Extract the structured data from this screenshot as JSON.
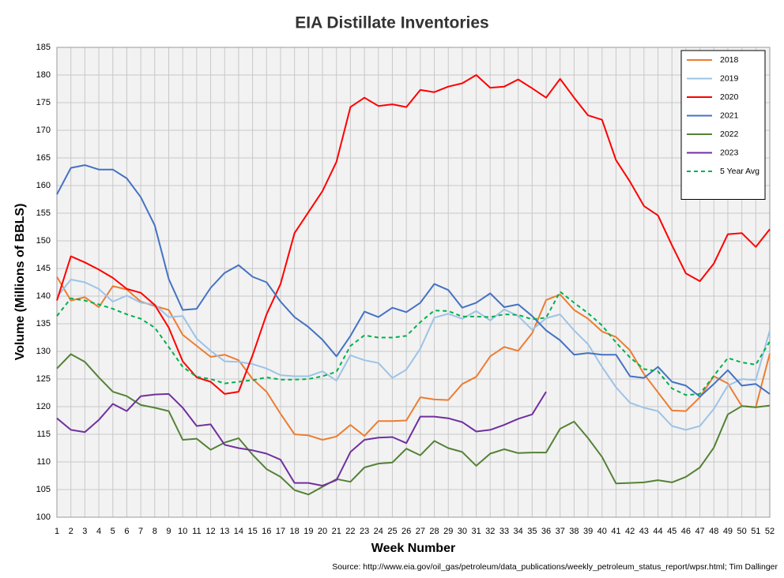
{
  "chart_data": {
    "type": "line",
    "title": "EIA Distillate Inventories",
    "xlabel": "Week Number",
    "ylabel": "Volume (Millions of BBLS)",
    "source": "Source: http://www.eia.gov/oil_gas/petroleum/data_publications/weekly_petroleum_status_report/wpsr.html; Tim Dallinger",
    "x": [
      1,
      2,
      3,
      4,
      5,
      6,
      7,
      8,
      9,
      10,
      11,
      12,
      13,
      14,
      15,
      16,
      17,
      18,
      19,
      20,
      21,
      22,
      23,
      24,
      25,
      26,
      27,
      28,
      29,
      30,
      31,
      32,
      33,
      34,
      35,
      36,
      37,
      38,
      39,
      40,
      41,
      42,
      43,
      44,
      45,
      46,
      47,
      48,
      49,
      50,
      51,
      52
    ],
    "xlim": [
      1,
      52
    ],
    "xticks": [
      1,
      2,
      3,
      4,
      5,
      6,
      7,
      8,
      9,
      10,
      11,
      12,
      13,
      14,
      15,
      16,
      17,
      18,
      19,
      20,
      21,
      22,
      23,
      24,
      25,
      26,
      27,
      28,
      29,
      30,
      31,
      32,
      33,
      34,
      35,
      36,
      37,
      38,
      39,
      40,
      41,
      42,
      43,
      44,
      45,
      46,
      47,
      48,
      49,
      50,
      51,
      52
    ],
    "ylim": [
      100,
      185
    ],
    "yticks": [
      100,
      105,
      110,
      115,
      120,
      125,
      130,
      135,
      140,
      145,
      150,
      155,
      160,
      165,
      170,
      175,
      180,
      185
    ],
    "grid": true,
    "legend": "top-right",
    "series": [
      {
        "name": "2018",
        "color": "#ed7d31",
        "dashed": false,
        "values": [
          143.5,
          139.2,
          139.8,
          138,
          141.8,
          141.2,
          139,
          138.2,
          137.5,
          133,
          131,
          129,
          129.4,
          128.4,
          125,
          122.7,
          118.7,
          115,
          114.8,
          114,
          114.6,
          116.7,
          114.7,
          117.4,
          117.4,
          117.5,
          121.7,
          121.3,
          121.2,
          124.1,
          125.4,
          129.1,
          130.8,
          130.1,
          133.3,
          139.3,
          140.3,
          137.5,
          135.9,
          133.6,
          132.6,
          130.2,
          125.9,
          122.6,
          119.3,
          119.2,
          121.7,
          125.5,
          124.2,
          120.1,
          119.9,
          129.6
        ]
      },
      {
        "name": "2019",
        "color": "#9dc3e6",
        "dashed": false,
        "values": [
          139.8,
          143,
          142.5,
          141.3,
          139,
          140.1,
          138.8,
          138.5,
          136.2,
          136.4,
          132.3,
          130.1,
          128.2,
          128.1,
          127.7,
          126.9,
          125.7,
          125.5,
          125.5,
          126.4,
          124.7,
          129.3,
          128.4,
          127.9,
          125.2,
          126.7,
          130.5,
          136.1,
          136.8,
          135.9,
          137.3,
          135.6,
          137.6,
          136.4,
          133.9,
          136,
          136.7,
          133.8,
          131.3,
          127.2,
          123.5,
          120.7,
          119.8,
          119.2,
          116.5,
          115.8,
          116.5,
          119.6,
          123.8,
          125,
          124.8,
          133.8
        ]
      },
      {
        "name": "2020",
        "color": "#ff0000",
        "dashed": false,
        "values": [
          139.2,
          147.2,
          146.1,
          144.8,
          143.3,
          141.3,
          140.6,
          138.4,
          134.3,
          128.2,
          125.3,
          124.5,
          122.3,
          122.7,
          129.3,
          136.7,
          142.2,
          151.4,
          155.2,
          159,
          164.3,
          174.2,
          175.9,
          174.4,
          174.7,
          174.2,
          177.3,
          176.9,
          177.9,
          178.5,
          180,
          177.7,
          177.9,
          179.2,
          177.6,
          175.9,
          179.3,
          175.9,
          172.7,
          171.9,
          164.6,
          160.7,
          156.3,
          154.6,
          149.2,
          144.1,
          142.7,
          145.9,
          151.2,
          151.4,
          148.9,
          152.1
        ]
      },
      {
        "name": "2021",
        "color": "#4472c4",
        "dashed": false,
        "values": [
          158.4,
          163.2,
          163.7,
          162.9,
          162.9,
          161.3,
          157.9,
          152.8,
          143.1,
          137.5,
          137.7,
          141.5,
          144.2,
          145.6,
          143.5,
          142.5,
          139,
          136.2,
          134.4,
          132.1,
          129.1,
          132.8,
          137.2,
          136.2,
          137.9,
          137.1,
          138.8,
          142.2,
          141.1,
          137.9,
          138.8,
          140.5,
          138,
          138.5,
          136.4,
          133.8,
          132,
          129.4,
          129.7,
          129.4,
          129.4,
          125.5,
          125.2,
          127.2,
          124.5,
          123.8,
          121.8,
          124.1,
          126.6,
          123.8,
          124.1,
          122.3
        ]
      },
      {
        "name": "2022",
        "color": "#548235",
        "dashed": false,
        "values": [
          126.9,
          129.5,
          128.1,
          125.3,
          122.7,
          121.9,
          120.3,
          119.8,
          119.2,
          114,
          114.2,
          112.2,
          113.5,
          114.3,
          111.3,
          108.7,
          107.3,
          104.9,
          104.1,
          105.5,
          106.9,
          106.4,
          109,
          109.7,
          109.9,
          112.4,
          111.2,
          113.8,
          112.5,
          111.8,
          109.3,
          111.5,
          112.3,
          111.6,
          111.7,
          111.7,
          116,
          117.3,
          114.3,
          110.9,
          106.1,
          106.2,
          106.3,
          106.7,
          106.3,
          107.3,
          109,
          112.6,
          118.6,
          120.1,
          119.9,
          120.2
        ]
      },
      {
        "name": "2023",
        "color": "#7030a0",
        "dashed": false,
        "values": [
          117.9,
          115.8,
          115.4,
          117.6,
          120.5,
          119.2,
          121.9,
          122.2,
          122.3,
          119.8,
          116.5,
          116.8,
          113.1,
          112.5,
          112.1,
          111.5,
          110.4,
          106.2,
          106.2,
          105.7,
          106.7,
          111.8,
          114,
          114.4,
          114.5,
          113.4,
          118.2,
          118.2,
          117.9,
          117.2,
          115.5,
          115.8,
          116.7,
          117.8,
          118.6,
          122.7,
          null,
          null,
          null,
          null,
          null,
          null,
          null,
          null,
          null,
          null,
          null,
          null,
          null,
          null,
          null,
          null
        ]
      },
      {
        "name": "5 Year Avg",
        "color": "#00b050",
        "dashed": true,
        "values": [
          136.4,
          139.6,
          139.2,
          138.5,
          137.7,
          136.7,
          135.9,
          134.3,
          130.8,
          127.2,
          125.4,
          125,
          124.2,
          124.5,
          124.8,
          125.3,
          124.9,
          124.9,
          125,
          125.5,
          126.3,
          131,
          132.9,
          132.5,
          132.5,
          132.8,
          135.3,
          137.4,
          137.3,
          136.3,
          136.3,
          136.2,
          136.7,
          136.6,
          135.8,
          136.1,
          140.8,
          138.8,
          136.9,
          134.7,
          131.6,
          128.9,
          126.8,
          126.4,
          123.3,
          122.1,
          122.3,
          125.6,
          128.8,
          128,
          127.6,
          131.8
        ]
      }
    ]
  }
}
